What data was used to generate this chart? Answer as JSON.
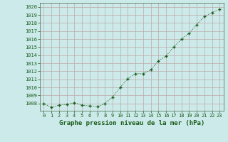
{
  "x": [
    0,
    1,
    2,
    3,
    4,
    5,
    6,
    7,
    8,
    9,
    10,
    11,
    12,
    13,
    14,
    15,
    16,
    17,
    18,
    19,
    20,
    21,
    22,
    23
  ],
  "y": [
    1008.0,
    1007.5,
    1007.8,
    1007.9,
    1008.1,
    1007.8,
    1007.7,
    1007.6,
    1008.0,
    1008.8,
    1010.0,
    1011.1,
    1011.7,
    1011.7,
    1012.2,
    1013.3,
    1013.9,
    1015.0,
    1016.0,
    1016.7,
    1017.8,
    1018.8,
    1019.3,
    1019.7
  ],
  "line_color": "#1a5c1a",
  "marker": "+",
  "background_color": "#cceaea",
  "grid_color": "#c0a8a8",
  "xlabel": "Graphe pression niveau de la mer (hPa)",
  "xlabel_color": "#1a5c1a",
  "ylabel_ticks": [
    1008,
    1009,
    1010,
    1011,
    1012,
    1013,
    1014,
    1015,
    1016,
    1017,
    1018,
    1019,
    1020
  ],
  "ylim": [
    1007.1,
    1020.5
  ],
  "xlim": [
    -0.5,
    23.5
  ],
  "tick_color": "#1a5c1a",
  "tick_fontsize": 5.0,
  "xlabel_fontsize": 6.5
}
